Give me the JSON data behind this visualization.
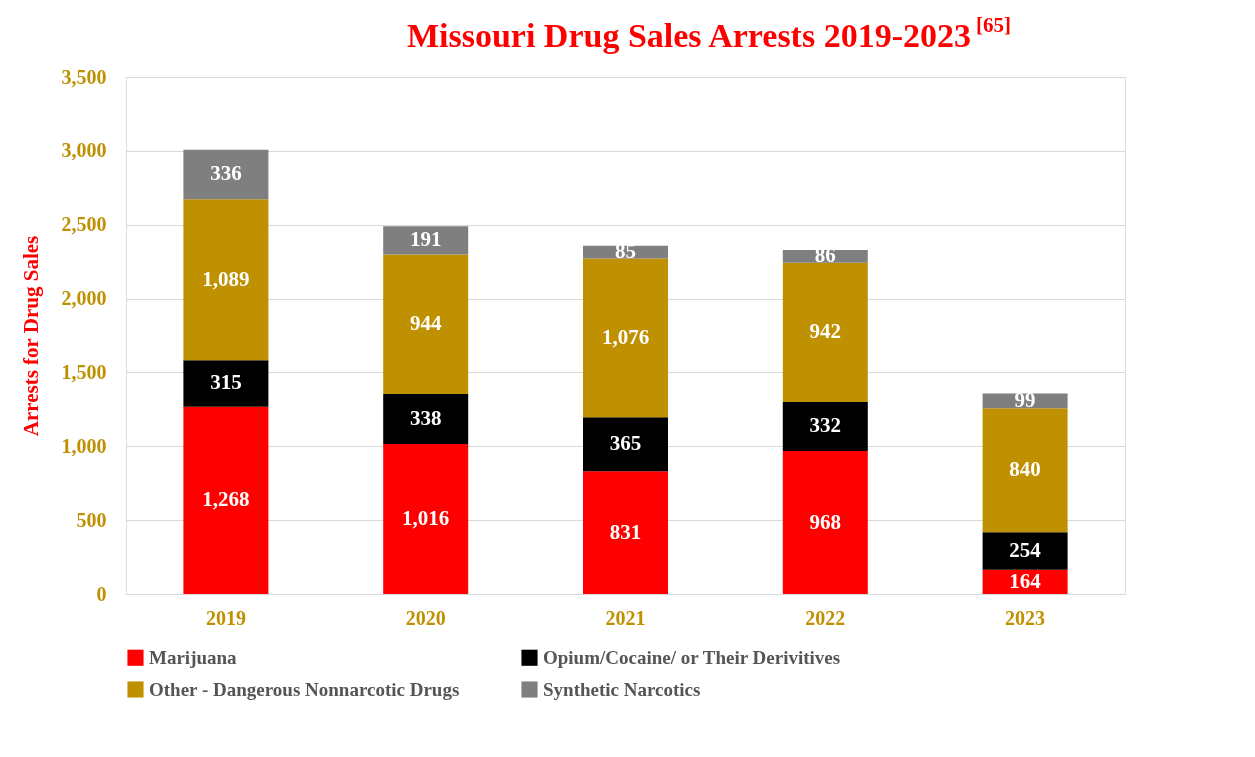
{
  "chart_data": {
    "type": "bar",
    "title": "Missouri Drug Sales Arrests 2019-2023$^{[65]}$",
    "ylabel": "Arrests for Drug Sales",
    "categories": [
      "2019",
      "2020",
      "2021",
      "2022",
      "2023"
    ],
    "stacked": true,
    "series": [
      {
        "name": "Marijuana",
        "color": "#ff0000",
        "values": [
          1268,
          1016,
          831,
          968,
          164
        ],
        "value_labels": [
          "1,268",
          "1,016",
          "831",
          "968",
          "164"
        ]
      },
      {
        "name": "Opium/Cocaine/ or Their Derivitives",
        "color": "#000000",
        "values": [
          315,
          338,
          365,
          332,
          254
        ],
        "value_labels": [
          "315",
          "338",
          "365",
          "332",
          "254"
        ]
      },
      {
        "name": "Other - Dangerous Nonnarcotic Drugs",
        "color": "#bf9000",
        "values": [
          1089,
          944,
          1076,
          942,
          840
        ],
        "value_labels": [
          "1,089",
          "944",
          "1,076",
          "942",
          "840"
        ]
      },
      {
        "name": "Synthetic Narcotics",
        "color": "#7f7f7f",
        "values": [
          336,
          191,
          85,
          86,
          99
        ],
        "value_labels": [
          "336",
          "191",
          "85",
          "86",
          "99"
        ]
      }
    ],
    "ylim": [
      0,
      3500
    ],
    "yticks": [
      0,
      500,
      {
        "value": 1000,
        "label": "1,000"
      },
      {
        "value": 1500,
        "label": "1,500"
      },
      {
        "value": 2000,
        "label": "2,000"
      },
      {
        "value": 2500,
        "label": "2,500"
      },
      {
        "value": 3000,
        "label": "3,000"
      },
      {
        "value": 3500,
        "label": "3,500"
      }
    ],
    "grid": "y",
    "legend": "bottom"
  }
}
